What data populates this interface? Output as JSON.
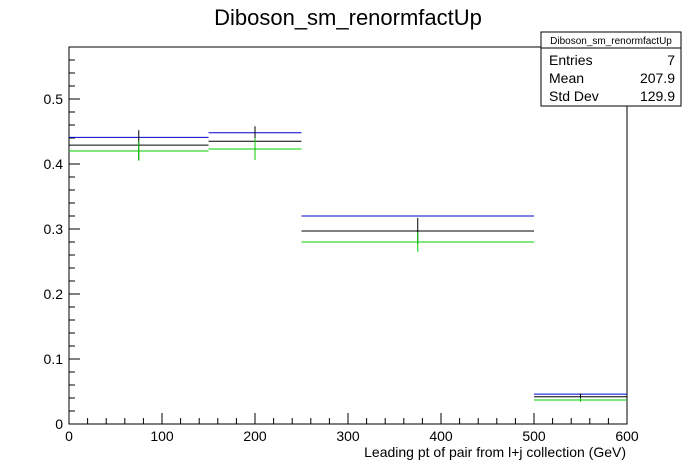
{
  "chart_data": {
    "type": "histogram",
    "title": "Diboson_sm_renormfactUp",
    "xlabel": "Leading pt of pair from l+j collection (GeV)",
    "ylabel": "",
    "xlim": [
      0,
      600
    ],
    "ylim": [
      0,
      0.58
    ],
    "x_ticks": [
      0,
      100,
      200,
      300,
      400,
      500,
      600
    ],
    "x_tick_labels": [
      "0",
      "100",
      "200",
      "300",
      "400",
      "500",
      "600"
    ],
    "y_ticks": [
      0,
      0.1,
      0.2,
      0.3,
      0.4,
      0.5
    ],
    "y_tick_labels": [
      "0",
      "0.1",
      "0.2",
      "0.3",
      "0.4",
      "0.5"
    ],
    "bins": [
      {
        "low": 0,
        "high": 150
      },
      {
        "low": 150,
        "high": 250
      },
      {
        "low": 250,
        "high": 500
      },
      {
        "low": 500,
        "high": 600
      }
    ],
    "series": [
      {
        "color": "#0000cc",
        "values": [
          0.441,
          0.448,
          0.32,
          0.046
        ],
        "errors": [
          0,
          0,
          0,
          0
        ]
      },
      {
        "color": "#000000",
        "values": [
          0.429,
          0.435,
          0.297,
          0.042
        ],
        "errors": [
          0.023,
          0.023,
          0.02,
          0.005
        ]
      },
      {
        "color": "#00cc00",
        "values": [
          0.42,
          0.423,
          0.28,
          0.037
        ],
        "errors": [
          0.015,
          0.017,
          0.015,
          0.003
        ]
      }
    ],
    "stats": {
      "name": "Diboson_sm_renormfactUp",
      "rows": [
        {
          "label": "Entries",
          "value": "7"
        },
        {
          "label": "Mean",
          "value": "207.9"
        },
        {
          "label": "Std Dev",
          "value": "129.9"
        }
      ]
    },
    "grid": false,
    "legend": "none"
  }
}
